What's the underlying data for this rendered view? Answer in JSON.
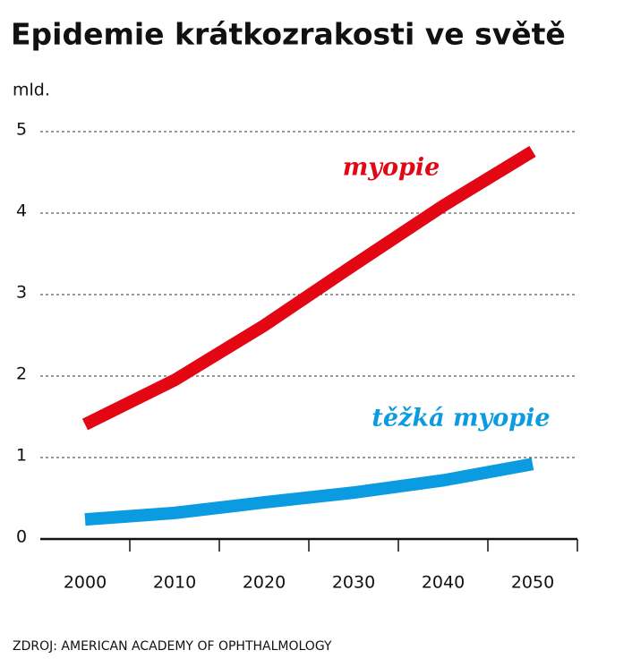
{
  "chart_data": {
    "type": "line",
    "title": "Epidemie krátkozrakosti ve světě",
    "y_label": "mld.",
    "categories": [
      "2000",
      "2010",
      "2020",
      "2030",
      "2040",
      "2050"
    ],
    "series": [
      {
        "name": "myopie",
        "color": "#e30613",
        "values": [
          1.406,
          1.95,
          2.62,
          3.361,
          4.089,
          4.758
        ]
      },
      {
        "name": "těžká myopie",
        "color": "#0a9be0",
        "values": [
          0.24,
          0.32,
          0.45,
          0.57,
          0.72,
          0.92
        ]
      }
    ],
    "ylim": [
      0,
      5
    ],
    "yticks": [
      0,
      1,
      2,
      3,
      4,
      5
    ],
    "grid": true,
    "source": "ZDROJ: AMERICAN ACADEMY OF OPHTHALMOLOGY"
  }
}
